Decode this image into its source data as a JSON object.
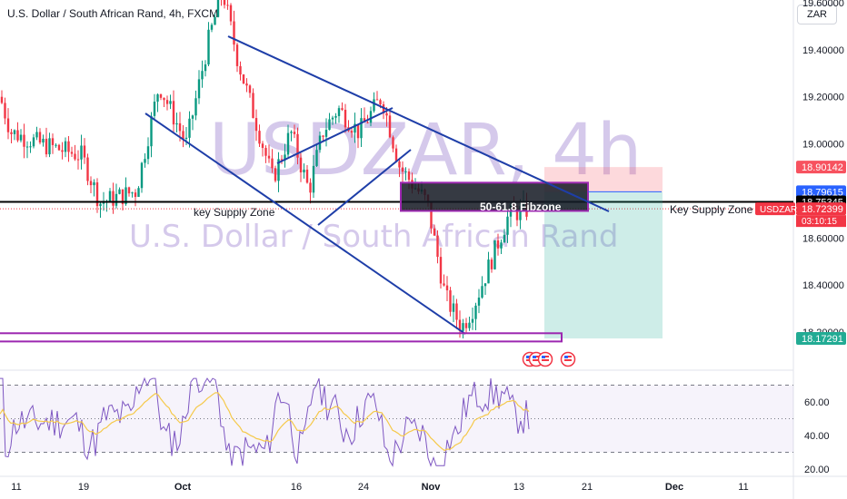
{
  "header": {
    "title": "U.S. Dollar / South African Rand, 4h, FXCM",
    "currency": "ZAR"
  },
  "watermark": {
    "symbol": "USDZAR, 4h",
    "name": "U.S. Dollar / South African Rand"
  },
  "price_axis": {
    "ticks": [
      "19.60000",
      "19.40000",
      "19.20000",
      "19.00000",
      "18.60000",
      "18.40000",
      "18.20000"
    ],
    "tick_values": [
      19.6,
      19.4,
      19.2,
      19.0,
      18.6,
      18.4,
      18.2
    ],
    "badges": [
      {
        "label": "18.90142",
        "value": 18.90142,
        "bg": "#f7525f",
        "fg": "#ffffff"
      },
      {
        "label": "18.79615",
        "value": 18.79615,
        "bg": "#2962ff",
        "fg": "#ffffff"
      },
      {
        "label": "18.75345",
        "value": 18.75345,
        "bg": "#000000",
        "fg": "#ffffff"
      },
      {
        "label": "18.72399",
        "value": 18.72399,
        "bg": "#f23645",
        "fg": "#ffffff"
      },
      {
        "label": "18.17291",
        "value": 18.17291,
        "bg": "#22ab94",
        "fg": "#ffffff"
      }
    ],
    "symbol_tag": "USDZAR",
    "countdown": "03:10:15"
  },
  "time_axis": {
    "labels": [
      "11",
      "19",
      "Oct",
      "16",
      "24",
      "Nov",
      "13",
      "21",
      "Dec",
      "11"
    ],
    "bold": [
      false,
      false,
      true,
      false,
      false,
      true,
      false,
      false,
      true,
      false
    ]
  },
  "annotations": {
    "key_supply_left": "key Supply Zone",
    "key_supply_right": "Key Supply Zone",
    "fibzone": "50-61.8 Fibzone"
  },
  "rsi": {
    "ticks": [
      "60.00",
      "40.00",
      "20.00"
    ],
    "tick_values": [
      60,
      40,
      20
    ],
    "upper_band": 70,
    "lower_band": 30,
    "mid_band": 50
  },
  "chart_data": {
    "type": "candlestick",
    "title": "U.S. Dollar / South African Rand, 4h, FXCM",
    "ylim": [
      18.13,
      19.75
    ],
    "key_levels": {
      "supply_zone": 18.75345,
      "last_price": 18.72399,
      "target": 18.17291,
      "stop": 18.90142,
      "entry": 18.79615
    },
    "ohlc_waypoints": [
      {
        "x": "Sep 8",
        "close": 19.2
      },
      {
        "x": "Sep 11",
        "close": 19.05
      },
      {
        "x": "Sep 19",
        "close": 18.75
      },
      {
        "x": "Sep 26",
        "close": 19.25
      },
      {
        "x": "Oct 5",
        "close": 19.65
      },
      {
        "x": "Oct 10",
        "close": 19.1
      },
      {
        "x": "Oct 16",
        "close": 18.85
      },
      {
        "x": "Oct 20",
        "close": 19.15
      },
      {
        "x": "Oct 26",
        "close": 19.2
      },
      {
        "x": "Oct 30",
        "close": 18.9
      },
      {
        "x": "Nov 2",
        "close": 18.45
      },
      {
        "x": "Nov 6",
        "close": 18.25
      },
      {
        "x": "Nov 10",
        "close": 18.6
      },
      {
        "x": "Nov 13",
        "close": 18.72399
      }
    ]
  },
  "colors": {
    "up": "#089981",
    "down": "#f23645",
    "trendline": "#1e3ea8",
    "zone_border": "#9c27b0",
    "rsi_line": "#7e57c2",
    "rsi_ma": "#f5c94a"
  },
  "icons": [
    "us-flag-event-icon",
    "us-flag-event-icon",
    "us-flag-event-icon",
    "us-flag-event-icon"
  ]
}
